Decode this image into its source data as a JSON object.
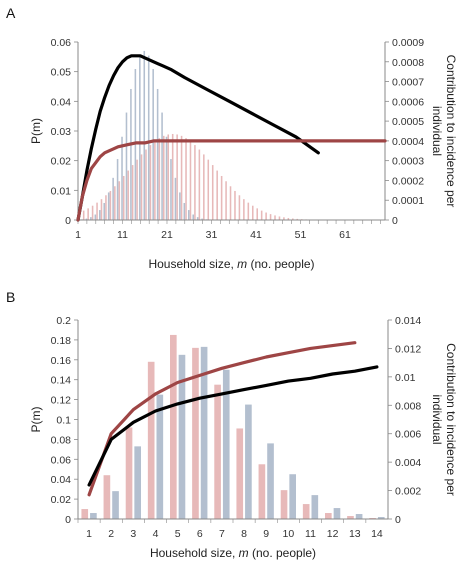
{
  "chart_data": [
    {
      "panel": "A",
      "type": "bar",
      "xlabel_prefix": "Household size, ",
      "xlabel_var": "m",
      "xlabel_suffix": " (no. people)",
      "ylabel": "P(m)",
      "y2label_line1": "Contribution to incidence per",
      "y2label_line2": "individual",
      "xlim": [
        1,
        70
      ],
      "ylim": [
        0,
        0.06
      ],
      "y2lim": [
        0,
        0.0009
      ],
      "xticks": [
        "1",
        "11",
        "21",
        "31",
        "41",
        "51",
        "61"
      ],
      "yticks": [
        "0",
        "0.01",
        "0.02",
        "0.03",
        "0.04",
        "0.05",
        "0.06"
      ],
      "y2ticks": [
        "0",
        "0.0001",
        "0.0002",
        "0.0003",
        "0.0004",
        "0.0005",
        "0.0006",
        "0.0007",
        "0.0008",
        "0.0009"
      ],
      "grid": false,
      "colors": {
        "blue_bars": "#b3bfcf",
        "pink_bars": "#e7b9b9",
        "black_line": "#000000",
        "red_line": "#9e4545"
      },
      "bar_series": [
        {
          "color_key": "blue_bars",
          "mean": 16,
          "sd": 4.2,
          "peak": 0.057,
          "max_x": 34
        },
        {
          "color_key": "pink_bars",
          "mean": 22,
          "sd": 9.5,
          "peak": 0.029,
          "max_x": 70
        }
      ],
      "line_series": [
        {
          "color_key": "black_line",
          "x": [
            1,
            2,
            3,
            4,
            5,
            6,
            7,
            8,
            9,
            10,
            11,
            12,
            13,
            14,
            15,
            16,
            17,
            18,
            19,
            20,
            22,
            25,
            30,
            35,
            40,
            45,
            50,
            55
          ],
          "y": [
            0,
            0.00012,
            0.00025,
            0.00036,
            0.00046,
            0.00055,
            0.00062,
            0.00068,
            0.00073,
            0.00077,
            0.0008,
            0.00082,
            0.00083,
            0.00083,
            0.00083,
            0.00082,
            0.00081,
            0.0008,
            0.00079,
            0.00078,
            0.00076,
            0.00072,
            0.00066,
            0.0006,
            0.00054,
            0.00048,
            0.00042,
            0.00034
          ]
        },
        {
          "color_key": "red_line",
          "x": [
            1,
            2,
            3,
            4,
            5,
            6,
            7,
            8,
            9,
            10,
            12,
            14,
            16,
            18,
            20,
            22,
            25,
            30,
            35,
            40,
            50,
            60,
            70
          ],
          "y": [
            0,
            0.00012,
            0.0002,
            0.00026,
            0.00029,
            0.00032,
            0.00034,
            0.00035,
            0.00036,
            0.00037,
            0.00038,
            0.00039,
            0.00039,
            0.0004,
            0.0004,
            0.0004,
            0.0004,
            0.0004,
            0.0004,
            0.0004,
            0.0004,
            0.0004,
            0.0004
          ]
        }
      ]
    },
    {
      "panel": "B",
      "type": "bar",
      "xlabel_prefix": "Household size, ",
      "xlabel_var": "m",
      "xlabel_suffix": " (no. people)",
      "ylabel": "P(m)",
      "y2label_line1": "Contribution to incidence per",
      "y2label_line2": "individual",
      "categories": [
        "1",
        "2",
        "3",
        "4",
        "5",
        "6",
        "7",
        "8",
        "9",
        "10",
        "11",
        "12",
        "13",
        "14"
      ],
      "ylim": [
        0,
        0.2
      ],
      "y2lim": [
        0,
        0.014
      ],
      "yticks": [
        "0",
        "0.02",
        "0.04",
        "0.06",
        "0.08",
        "0.1",
        "0.12",
        "0.14",
        "0.16",
        "0.18",
        "0.2"
      ],
      "y2ticks": [
        "0",
        "0.002",
        "0.004",
        "0.006",
        "0.008",
        "0.01",
        "0.012",
        "0.014"
      ],
      "grid": false,
      "series": [
        {
          "color_key": "pink_bars",
          "values": [
            0.01,
            0.044,
            0.092,
            0.158,
            0.185,
            0.172,
            0.135,
            0.091,
            0.055,
            0.029,
            0.015,
            0.006,
            0.003,
            0.001
          ]
        },
        {
          "color_key": "blue_bars",
          "values": [
            0.006,
            0.028,
            0.073,
            0.125,
            0.165,
            0.173,
            0.15,
            0.115,
            0.076,
            0.045,
            0.024,
            0.011,
            0.005,
            0.002
          ]
        }
      ],
      "line_series": [
        {
          "color_key": "black_line",
          "x": [
            1,
            2,
            3,
            4,
            5,
            6,
            7,
            8,
            9,
            10,
            11,
            12,
            13,
            14
          ],
          "y": [
            0.0024,
            0.0056,
            0.0068,
            0.0076,
            0.0081,
            0.0085,
            0.0088,
            0.0091,
            0.0094,
            0.0097,
            0.0099,
            0.0102,
            0.0104,
            0.0107
          ]
        },
        {
          "color_key": "red_line",
          "x": [
            1,
            2,
            3,
            4,
            5,
            6,
            7,
            8,
            9,
            10,
            11,
            12,
            13
          ],
          "y": [
            0.0017,
            0.006,
            0.0077,
            0.0088,
            0.0096,
            0.0101,
            0.0106,
            0.011,
            0.0114,
            0.0117,
            0.012,
            0.0122,
            0.0124
          ]
        }
      ],
      "colors": {
        "blue_bars": "#b3bfcf",
        "pink_bars": "#e7b9b9",
        "black_line": "#000000",
        "red_line": "#9e4545"
      }
    }
  ]
}
